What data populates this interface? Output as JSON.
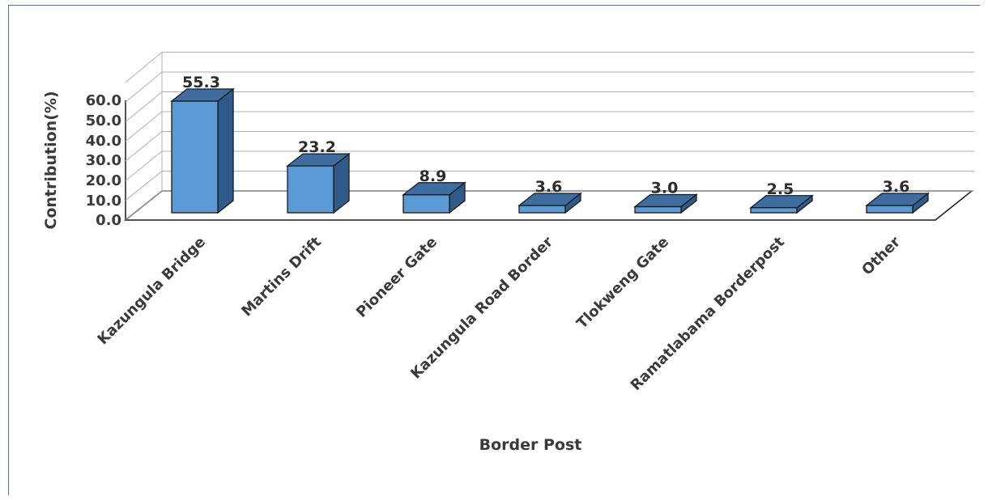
{
  "chart_data": {
    "type": "bar",
    "categories": [
      "Kazungula Bridge",
      "Martins Drift",
      "Pioneer Gate",
      "Kazungula Road Border",
      "Tlokweng Gate",
      "Ramatlabama Borderpost",
      "Other"
    ],
    "values": [
      55.3,
      23.2,
      8.9,
      3.6,
      3.0,
      2.5,
      3.6
    ],
    "value_labels": [
      "55.3",
      "23.2",
      "8.9",
      "3.6",
      "3.0",
      "2.5",
      "3.6"
    ],
    "title": "",
    "xlabel": "Border Post",
    "ylabel": "Contribution(%)",
    "ylim": [
      0,
      60
    ],
    "yticks": [
      "0.0",
      "10.0",
      "20.0",
      "30.0",
      "40.0",
      "50.0",
      "60.0"
    ],
    "grid": true,
    "style": "3d-column",
    "colors": {
      "bar_front": "#5b9bd5",
      "bar_top": "#3f6da0",
      "bar_side": "#2f5a8a",
      "bar_edge": "#1a1a1a",
      "grid": "#b0b0b0"
    }
  }
}
